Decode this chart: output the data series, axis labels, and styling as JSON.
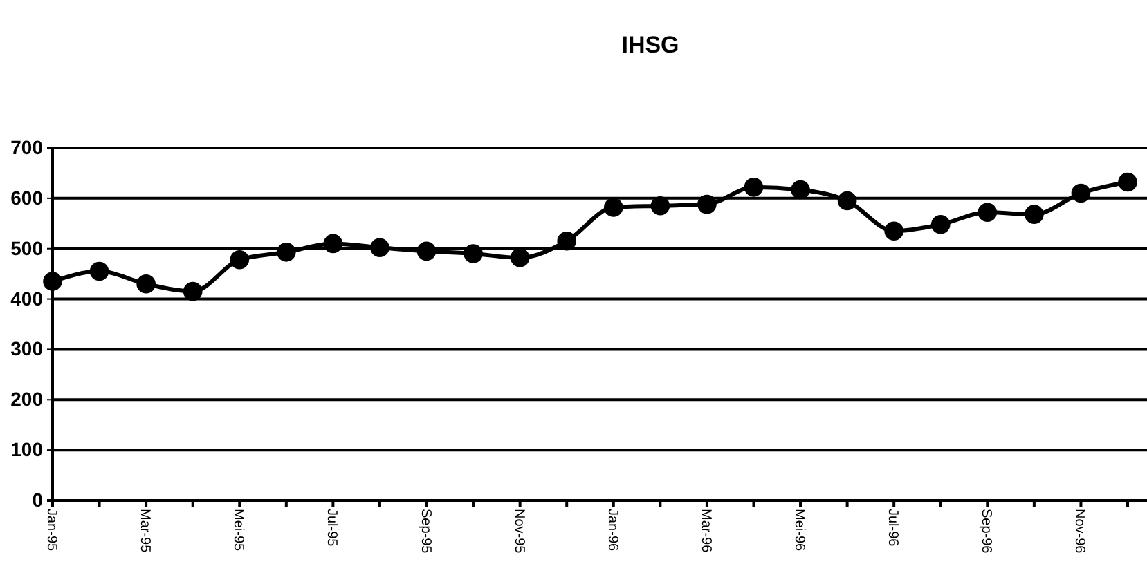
{
  "chart_data": {
    "type": "line",
    "title": "IHSG",
    "categories": [
      "Jan-95",
      null,
      "Mar-95",
      null,
      "Mei-95",
      null,
      "Jul-95",
      null,
      "Sep-95",
      null,
      "Nov-95",
      null,
      "Jan-96",
      null,
      "Mar-96",
      null,
      "Mei-96",
      null,
      "Jul-96",
      null,
      "Sep-96",
      null,
      "Nov-96",
      null
    ],
    "series": [
      {
        "color": "#000000",
        "values": [
          435,
          455,
          430,
          415,
          478,
          493,
          510,
          502,
          495,
          490,
          482,
          515,
          582,
          585,
          588,
          622,
          617,
          595,
          535,
          548,
          572,
          568,
          610,
          632
        ]
      }
    ],
    "ylim": [
      0,
      700
    ],
    "yticks": [
      0,
      100,
      200,
      300,
      400,
      500,
      600,
      700
    ],
    "grid": "y",
    "legend": false,
    "marker": "circle",
    "line_style": "solid"
  }
}
